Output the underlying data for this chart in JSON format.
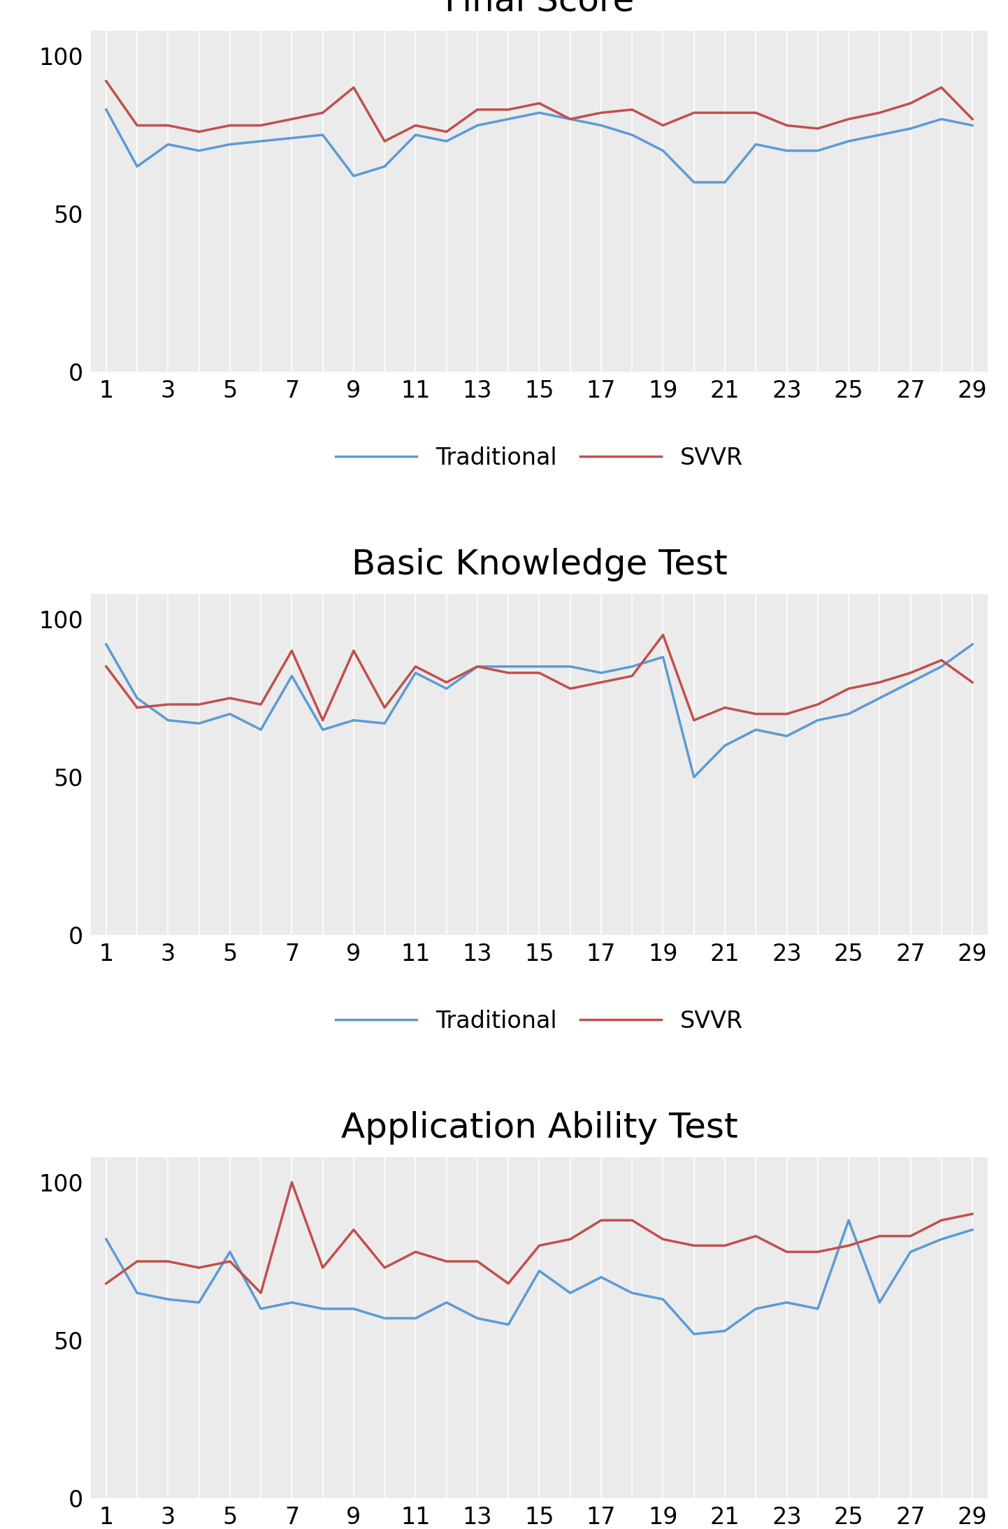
{
  "x": [
    1,
    2,
    3,
    4,
    5,
    6,
    7,
    8,
    9,
    10,
    11,
    12,
    13,
    14,
    15,
    16,
    17,
    18,
    19,
    20,
    21,
    22,
    23,
    24,
    25,
    26,
    27,
    28,
    29
  ],
  "final_score_traditional": [
    83,
    65,
    72,
    70,
    72,
    73,
    74,
    75,
    62,
    65,
    75,
    73,
    78,
    80,
    82,
    80,
    78,
    75,
    70,
    60,
    60,
    72,
    70,
    70,
    73,
    75,
    77,
    80,
    78
  ],
  "final_score_svvr": [
    92,
    78,
    78,
    76,
    78,
    78,
    80,
    82,
    90,
    73,
    78,
    76,
    83,
    83,
    85,
    80,
    82,
    83,
    78,
    82,
    82,
    82,
    78,
    77,
    80,
    82,
    85,
    90,
    80
  ],
  "basic_knowledge_traditional": [
    92,
    75,
    68,
    67,
    70,
    65,
    82,
    65,
    68,
    67,
    83,
    78,
    85,
    85,
    85,
    85,
    83,
    85,
    88,
    50,
    60,
    65,
    63,
    68,
    70,
    75,
    80,
    85,
    92
  ],
  "basic_knowledge_svvr": [
    85,
    72,
    73,
    73,
    75,
    73,
    90,
    68,
    90,
    72,
    85,
    80,
    85,
    83,
    83,
    78,
    80,
    82,
    95,
    68,
    72,
    70,
    70,
    73,
    78,
    80,
    83,
    87,
    80
  ],
  "application_traditional": [
    82,
    65,
    63,
    62,
    78,
    60,
    62,
    60,
    60,
    57,
    57,
    62,
    57,
    55,
    72,
    65,
    70,
    65,
    63,
    52,
    53,
    60,
    62,
    60,
    88,
    62,
    78,
    82,
    85
  ],
  "application_svvr": [
    68,
    75,
    75,
    73,
    75,
    65,
    100,
    73,
    85,
    73,
    78,
    75,
    75,
    68,
    80,
    82,
    88,
    88,
    82,
    80,
    80,
    83,
    78,
    78,
    80,
    83,
    83,
    88,
    90
  ],
  "traditional_color": "#5B9BD5",
  "svvr_color": "#C0504D",
  "background_color": "#EBEBEB",
  "vline_color": "#FFFFFF",
  "linewidth": 2.5,
  "ylim": [
    0,
    108
  ],
  "yticks": [
    0,
    50,
    100
  ],
  "title_fontsize": 36,
  "tick_fontsize": 24,
  "legend_fontsize": 24,
  "titles": [
    "Final Score",
    "Basic Knowledge Test",
    "Application Ability Test"
  ],
  "legend_labels": [
    "Traditional",
    "SVVR"
  ]
}
